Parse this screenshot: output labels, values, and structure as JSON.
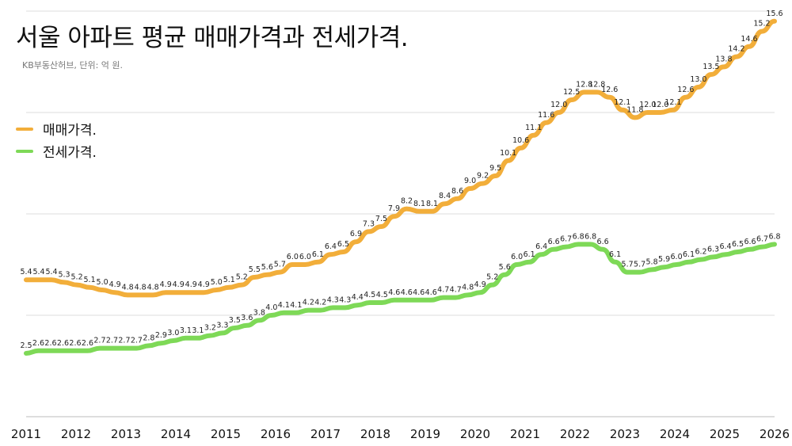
{
  "title": "서울 아파트 평균 매매가격과 전세가격.",
  "subtitle": "KB부동산허브, 단위: 억 원.",
  "chart_data": {
    "type": "line",
    "title": "서울 아파트 평균 매매가격과 전세가격.",
    "subtitle": "KB부동산허브, 단위: 억 원.",
    "xlabel": "",
    "ylabel": "",
    "xlim": [
      2011,
      2026
    ],
    "ylim": [
      0,
      16
    ],
    "grid": true,
    "legend": "left",
    "x_ticks": [
      "2011",
      "2012",
      "2013",
      "2014",
      "2015",
      "2016",
      "2017",
      "2018",
      "2019",
      "2020",
      "2021",
      "2022",
      "2023",
      "2024",
      "2025",
      "2026"
    ],
    "series": [
      {
        "name": "매매가격.",
        "color": "#F2AE3A",
        "values": [
          5.4,
          5.4,
          5.4,
          5.3,
          5.2,
          5.1,
          5.0,
          4.9,
          4.8,
          4.8,
          4.8,
          4.9,
          4.9,
          4.9,
          4.9,
          5.0,
          5.1,
          5.2,
          5.5,
          5.6,
          5.7,
          6.0,
          6.0,
          6.1,
          6.4,
          6.5,
          6.9,
          7.3,
          7.5,
          7.9,
          8.2,
          8.1,
          8.1,
          8.4,
          8.6,
          9.0,
          9.2,
          9.5,
          10.1,
          10.6,
          11.1,
          11.6,
          12.0,
          12.5,
          12.8,
          12.8,
          12.6,
          12.1,
          11.8,
          12.0,
          12.0,
          12.1,
          12.6,
          13.0,
          13.5,
          13.8,
          14.2,
          14.6,
          15.2,
          15.6
        ]
      },
      {
        "name": "전세가격.",
        "color": "#7ED957",
        "values": [
          2.5,
          2.6,
          2.6,
          2.6,
          2.6,
          2.6,
          2.7,
          2.7,
          2.7,
          2.7,
          2.8,
          2.9,
          3.0,
          3.1,
          3.1,
          3.2,
          3.3,
          3.5,
          3.6,
          3.8,
          4.0,
          4.1,
          4.1,
          4.2,
          4.2,
          4.3,
          4.3,
          4.4,
          4.5,
          4.5,
          4.6,
          4.6,
          4.6,
          4.6,
          4.7,
          4.7,
          4.8,
          4.9,
          5.2,
          5.6,
          6.0,
          6.1,
          6.4,
          6.6,
          6.7,
          6.8,
          6.8,
          6.6,
          6.1,
          5.7,
          5.7,
          5.8,
          5.9,
          6.0,
          6.1,
          6.2,
          6.3,
          6.4,
          6.5,
          6.6,
          6.7,
          6.8
        ]
      }
    ]
  }
}
